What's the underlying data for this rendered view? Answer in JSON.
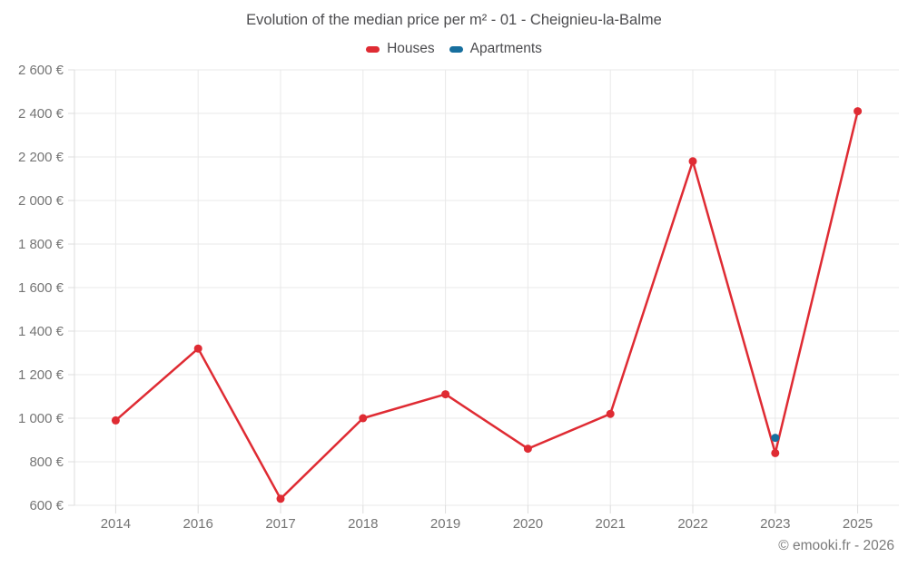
{
  "chart_data": {
    "type": "line",
    "title": "Evolution of the median price per m² - 01 - Cheignieu-la-Balme",
    "categories": [
      "2014",
      "2016",
      "2017",
      "2018",
      "2019",
      "2020",
      "2021",
      "2022",
      "2023",
      "2025"
    ],
    "series": [
      {
        "name": "Houses",
        "color": "#df2b33",
        "values": [
          990,
          1320,
          630,
          1000,
          1110,
          860,
          1020,
          2180,
          840,
          2410
        ]
      },
      {
        "name": "Apartments",
        "color": "#176f9e",
        "values": [
          null,
          null,
          null,
          null,
          null,
          null,
          null,
          null,
          910,
          null
        ]
      }
    ],
    "ylim": [
      600,
      2600
    ],
    "ytick_step": 200,
    "y_tick_suffix": " €",
    "xlabel": "",
    "ylabel": "",
    "grid": "on",
    "legend_position": "top"
  },
  "footer": {
    "text": "© emooki.fr - 2026"
  }
}
